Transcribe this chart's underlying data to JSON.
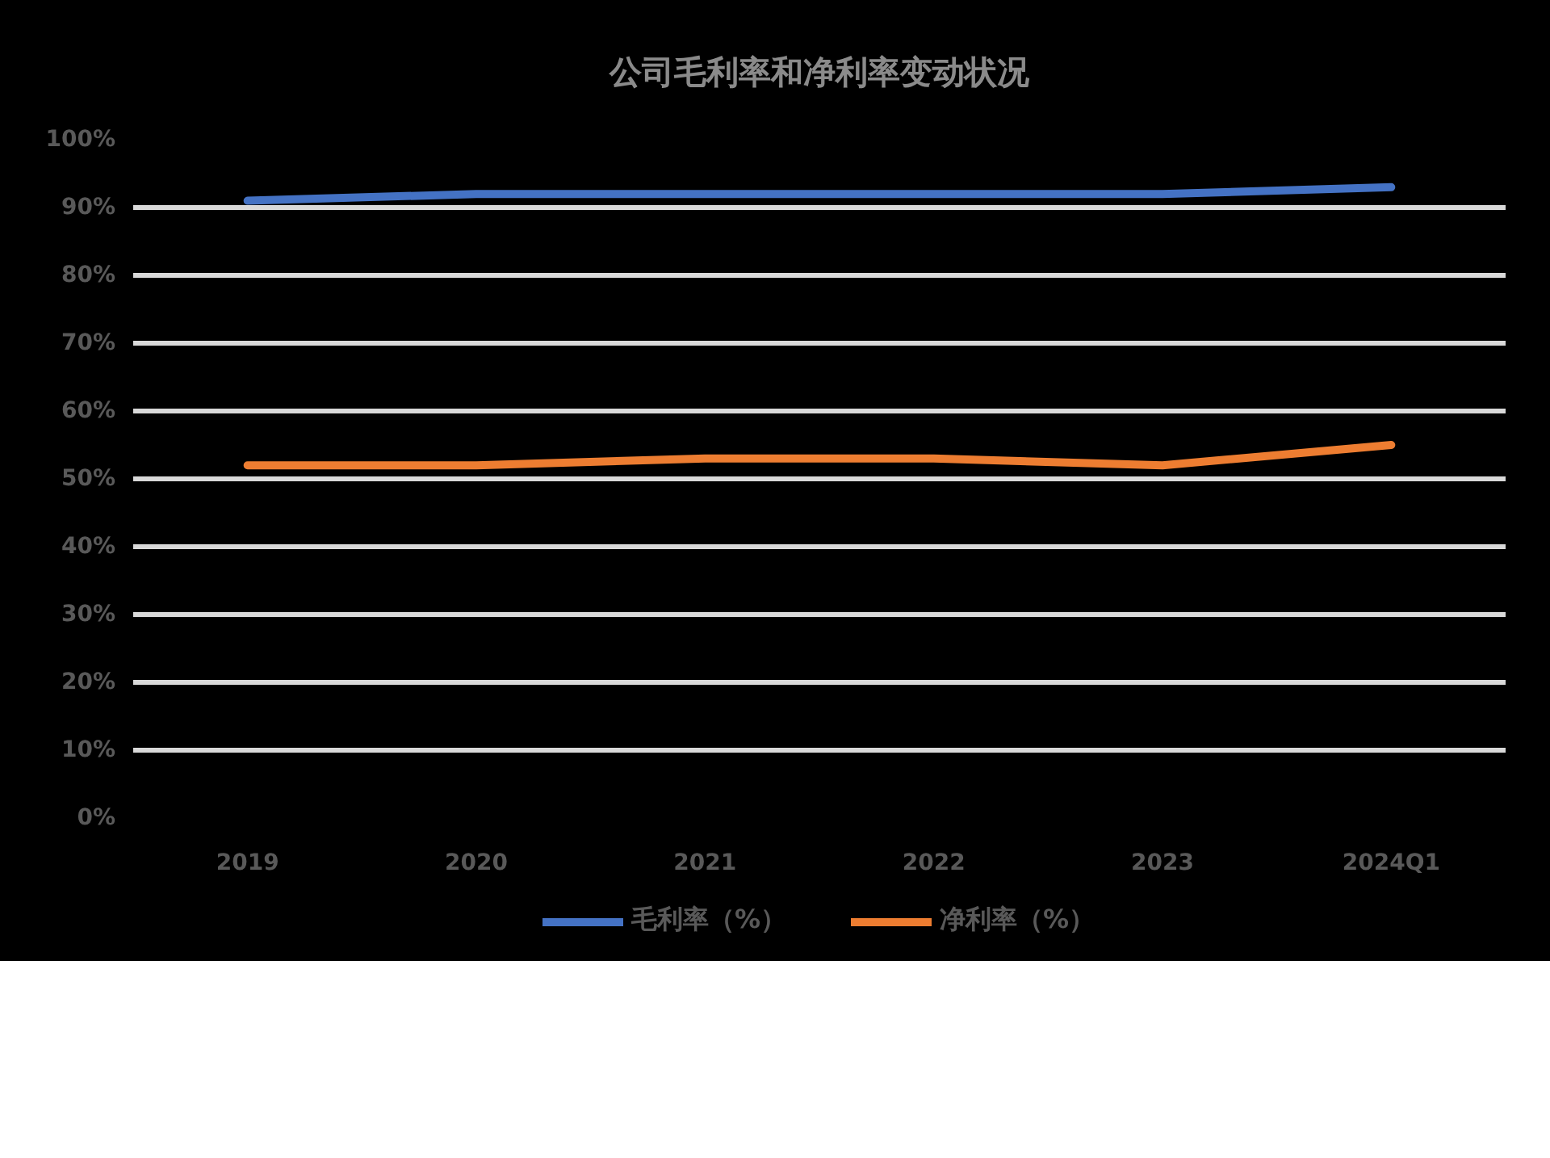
{
  "chart_data": {
    "type": "line",
    "title": "公司毛利率和净利率变动状况",
    "categories": [
      "2019",
      "2020",
      "2021",
      "2022",
      "2023",
      "2024Q1"
    ],
    "series": [
      {
        "name": "毛利率（%）",
        "color": "#4472c4",
        "values": [
          91,
          92,
          92,
          92,
          92,
          93
        ]
      },
      {
        "name": "净利率（%）",
        "color": "#ed7d31",
        "values": [
          52,
          52,
          53,
          53,
          52,
          55
        ]
      }
    ],
    "ylim": [
      0,
      100
    ],
    "yticks": [
      {
        "value": 0,
        "label": "0%"
      },
      {
        "value": 10,
        "label": "10%"
      },
      {
        "value": 20,
        "label": "20%"
      },
      {
        "value": 30,
        "label": "30%"
      },
      {
        "value": 40,
        "label": "40%"
      },
      {
        "value": 50,
        "label": "50%"
      },
      {
        "value": 60,
        "label": "60%"
      },
      {
        "value": 70,
        "label": "70%"
      },
      {
        "value": 80,
        "label": "80%"
      },
      {
        "value": 90,
        "label": "90%"
      },
      {
        "value": 100,
        "label": "100%"
      }
    ],
    "grid": "y",
    "legend": "bottom",
    "marker": "none",
    "line_style": "solid"
  }
}
